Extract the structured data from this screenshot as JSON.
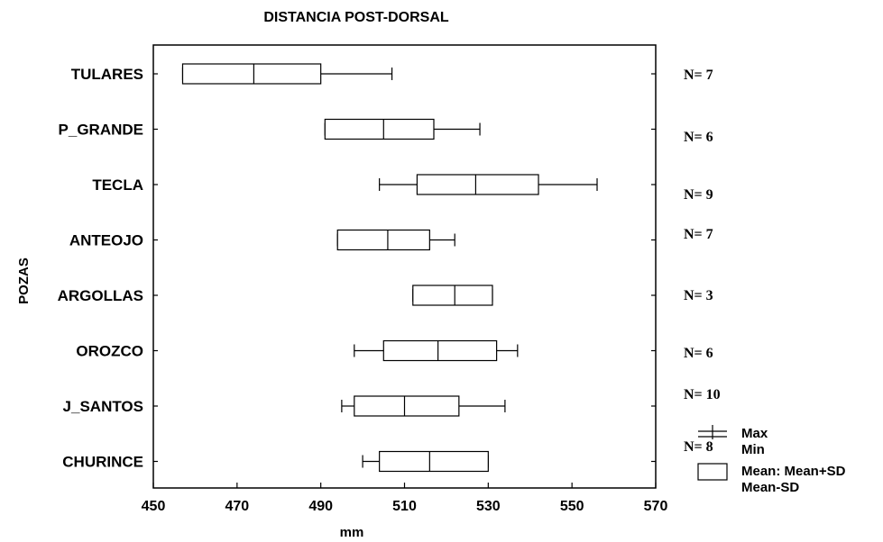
{
  "chart_data": {
    "type": "box",
    "title": "DISTANCIA POST-DORSAL",
    "xlabel": "mm",
    "ylabel": "POZAS",
    "xlim": [
      450,
      570
    ],
    "x_ticks": [
      "450",
      "470",
      "490",
      "510",
      "530",
      "550",
      "570"
    ],
    "categories": [
      "TULARES",
      "P_GRANDE",
      "TECLA",
      "ANTEOJO",
      "ARGOLLAS",
      "OROZCO",
      "J_SANTOS",
      "CHURINCE"
    ],
    "n_labels": [
      "N= 7",
      "N= 6",
      "N= 9",
      "N= 7",
      "N= 3",
      "N= 6",
      "N= 10",
      "N= 8"
    ],
    "series": [
      {
        "category": "TULARES",
        "min": 457,
        "mean_minus_sd": 457,
        "mean": 474,
        "mean_plus_sd": 490,
        "max": 507
      },
      {
        "category": "P_GRANDE",
        "min": 491,
        "mean_minus_sd": 491,
        "mean": 505,
        "mean_plus_sd": 517,
        "max": 528
      },
      {
        "category": "TECLA",
        "min": 504,
        "mean_minus_sd": 513,
        "mean": 527,
        "mean_plus_sd": 542,
        "max": 556
      },
      {
        "category": "ANTEOJO",
        "min": 494,
        "mean_minus_sd": 494,
        "mean": 506,
        "mean_plus_sd": 516,
        "max": 522
      },
      {
        "category": "ARGOLLAS",
        "min": 512,
        "mean_minus_sd": 512,
        "mean": 522,
        "mean_plus_sd": 531,
        "max": 531
      },
      {
        "category": "OROZCO",
        "min": 498,
        "mean_minus_sd": 505,
        "mean": 518,
        "mean_plus_sd": 532,
        "max": 537
      },
      {
        "category": "J_SANTOS",
        "min": 495,
        "mean_minus_sd": 498,
        "mean": 510,
        "mean_plus_sd": 523,
        "max": 534
      },
      {
        "category": "CHURINCE",
        "min": 500,
        "mean_minus_sd": 504,
        "mean": 516,
        "mean_plus_sd": 530,
        "max": 530
      }
    ],
    "legend": {
      "position": "bottom-right",
      "entries": [
        {
          "label_1": "Max",
          "label_2": "Min"
        },
        {
          "label_1": "Mean: Mean+SD",
          "label_2": "Mean-SD"
        }
      ]
    },
    "grid": false
  }
}
